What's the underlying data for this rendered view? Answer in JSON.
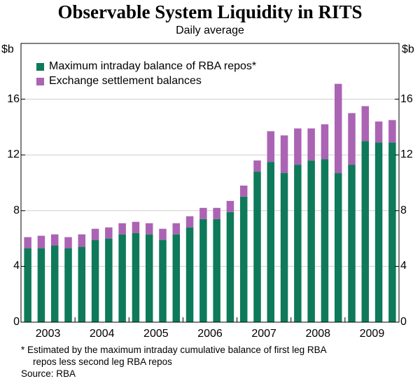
{
  "chart_data": {
    "type": "bar",
    "stacked": true,
    "title": "Observable System Liquidity in RITS",
    "subtitle": "Daily average",
    "ylabel_left": "$b",
    "ylabel_right": "$b",
    "ylim": [
      0,
      20
    ],
    "yticks": [
      0,
      4,
      8,
      12,
      16
    ],
    "xtick_labels": [
      "2003",
      "2004",
      "2005",
      "2006",
      "2007",
      "2008",
      "2009"
    ],
    "periods": [
      "2003 Q1",
      "2003 Q2",
      "2003 Q3",
      "2003 Q4",
      "2004 Q1",
      "2004 Q2",
      "2004 Q3",
      "2004 Q4",
      "2005 Q1",
      "2005 Q2",
      "2005 Q3",
      "2005 Q4",
      "2006 Q1",
      "2006 Q2",
      "2006 Q3",
      "2006 Q4",
      "2007 Q1",
      "2007 Q2",
      "2007 Q3",
      "2007 Q4",
      "2008 Q1",
      "2008 Q2",
      "2008 Q3",
      "2008 Q4",
      "2009 Q1",
      "2009 Q2",
      "2009 Q3",
      "2009 Q4"
    ],
    "series": [
      {
        "name": "Maximum intraday balance of RBA repos*",
        "color": "#0f7a5a",
        "values": [
          5.3,
          5.3,
          5.5,
          5.3,
          5.4,
          5.9,
          6.0,
          6.3,
          6.4,
          6.3,
          5.9,
          6.3,
          6.8,
          7.4,
          7.4,
          7.9,
          9.0,
          10.8,
          11.5,
          10.7,
          11.3,
          11.6,
          11.7,
          10.7,
          11.3,
          13.0,
          12.9,
          12.9
        ]
      },
      {
        "name": "Exchange settlement balances",
        "color": "#ab63b4",
        "values": [
          0.8,
          0.9,
          0.8,
          0.8,
          0.9,
          0.8,
          0.8,
          0.8,
          0.8,
          0.8,
          0.8,
          0.8,
          0.8,
          0.8,
          0.8,
          0.8,
          0.8,
          0.8,
          2.2,
          2.7,
          2.6,
          2.3,
          2.5,
          6.4,
          3.7,
          2.5,
          1.5,
          1.6
        ]
      }
    ],
    "footnote": "*  Estimated by the maximum intraday cumulative balance of first leg RBA repos less second leg RBA repos",
    "footnote_line1": "*  Estimated by the maximum intraday cumulative balance of first leg RBA",
    "footnote_line2": "repos less second leg RBA repos",
    "source": "Source: RBA"
  }
}
